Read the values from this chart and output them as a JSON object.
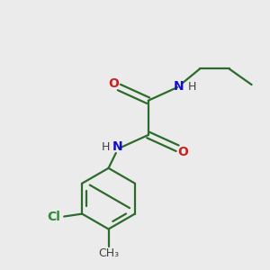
{
  "background_color": "#ebebeb",
  "bond_color": "#2d6b2d",
  "N_color": "#1010cc",
  "O_color": "#cc2020",
  "Cl_color": "#2d8a2d",
  "text_color": "#404040",
  "figsize": [
    3.0,
    3.0
  ],
  "dpi": 100,
  "xlim": [
    0,
    10
  ],
  "ylim": [
    0,
    10
  ]
}
